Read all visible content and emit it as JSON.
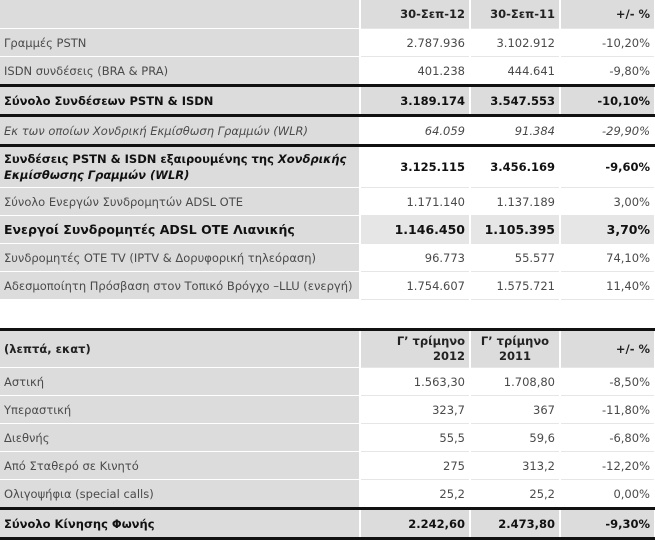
{
  "table1": {
    "headers": [
      "",
      "30-Σεπ-12",
      "30-Σεπ-11",
      "+/- %"
    ],
    "rows": [
      {
        "label": "Γραμμές PSTN",
        "v1": "2.787.936",
        "v2": "3.102.912",
        "pct": "-10,20%"
      },
      {
        "label": "ISDN συνδέσεις (BRA & PRA)",
        "v1": "401.238",
        "v2": "444.641",
        "pct": "-9,80%"
      },
      {
        "label": "Σύνολο Συνδέσεων PSTN & ISDN",
        "v1": "3.189.174",
        "v2": "3.547.553",
        "pct": "-10,10%"
      },
      {
        "label": "Εκ των οποίων Χονδρική Εκμίσθωση Γραμμών (WLR)",
        "v1": "64.059",
        "v2": "91.384",
        "pct": "-29,90%"
      },
      {
        "label": "Συνδέσεις PSTN & ISDN εξαιρουμένης της ",
        "label_italic": "Χονδρικής Εκμίσθωσης Γραμμών (WLR)",
        "v1": "3.125.115",
        "v2": "3.456.169",
        "pct": "-9,60%"
      },
      {
        "label": "Σύνολο Ενεργών Συνδρομητών ADSL OTE",
        "v1": "1.171.140",
        "v2": "1.137.189",
        "pct": "3,00%"
      },
      {
        "label": "Ενεργοί Συνδρομητές ADSL OTE Λιανικής",
        "v1": "1.146.450",
        "v2": "1.105.395",
        "pct": "3,70%"
      },
      {
        "label": "Συνδρομητές OTE TV (IPTV & Δορυφορική τηλεόραση)",
        "v1": "96.773",
        "v2": "55.577",
        "pct": "74,10%"
      },
      {
        "label": "Αδεσμοποίητη Πρόσβαση στον Τοπικό Βρόγχο –LLU (ενεργή)",
        "v1": "1.754.607",
        "v2": "1.575.721",
        "pct": "11,40%"
      }
    ]
  },
  "table2": {
    "headers": [
      "(λεπτά, εκατ)",
      "Γ’ τρίμηνο 2012",
      "Γ’ τρίμηνο 2011",
      "+/- %"
    ],
    "rows": [
      {
        "label": "Αστική",
        "v1": "1.563,30",
        "v2": "1.708,80",
        "pct": "-8,50%"
      },
      {
        "label": "Υπεραστική",
        "v1": "323,7",
        "v2": "367",
        "pct": "-11,80%"
      },
      {
        "label": "Διεθνής",
        "v1": "55,5",
        "v2": "59,6",
        "pct": "-6,80%"
      },
      {
        "label": "Από Σταθερό σε Κινητό",
        "v1": "275",
        "v2": "313,2",
        "pct": "-12,20%"
      },
      {
        "label": "Ολιγοψήφια (special calls)",
        "v1": "25,2",
        "v2": "25,2",
        "pct": "0,00%"
      },
      {
        "label": "Σύνολο Κίνησης Φωνής",
        "v1": "2.242,60",
        "v2": "2.473,80",
        "pct": "-9,30%"
      }
    ]
  }
}
